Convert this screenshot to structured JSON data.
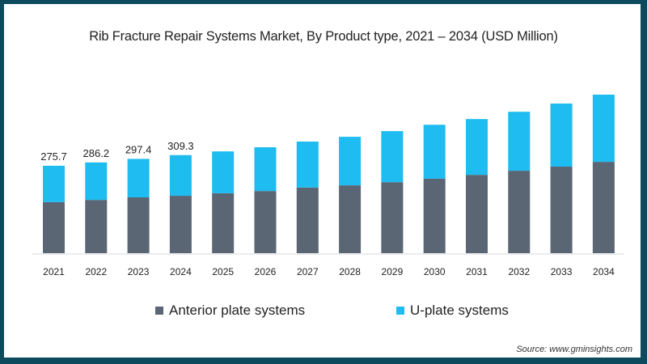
{
  "chart_data": {
    "type": "bar",
    "stacked": true,
    "title": "Rib Fracture Repair Systems Market, By Product type, 2021 – 2034 (USD Million)",
    "xlabel": "",
    "ylabel": "",
    "categories": [
      "2021",
      "2022",
      "2023",
      "2024",
      "2025",
      "2026",
      "2027",
      "2028",
      "2029",
      "2030",
      "2031",
      "2032",
      "2033",
      "2034"
    ],
    "series": [
      {
        "name": "Anterior plate systems",
        "color": "#5a6673",
        "values": [
          161,
          168,
          176,
          181,
          189,
          196,
          207,
          214,
          224,
          235,
          247,
          260,
          273,
          288
        ]
      },
      {
        "name": "U-plate systems",
        "color": "#1ebcf0",
        "values": [
          114.7,
          118.2,
          121.4,
          128.3,
          132,
          138,
          145,
          153,
          161,
          170,
          176,
          186,
          199,
          212
        ]
      }
    ],
    "totals_labels": [
      "275.7",
      "286.2",
      "297.4",
      "309.3"
    ],
    "ylim": [
      0,
      520
    ],
    "grid": false,
    "legend": "bottom"
  },
  "source": "Source: www.gminsights.com"
}
